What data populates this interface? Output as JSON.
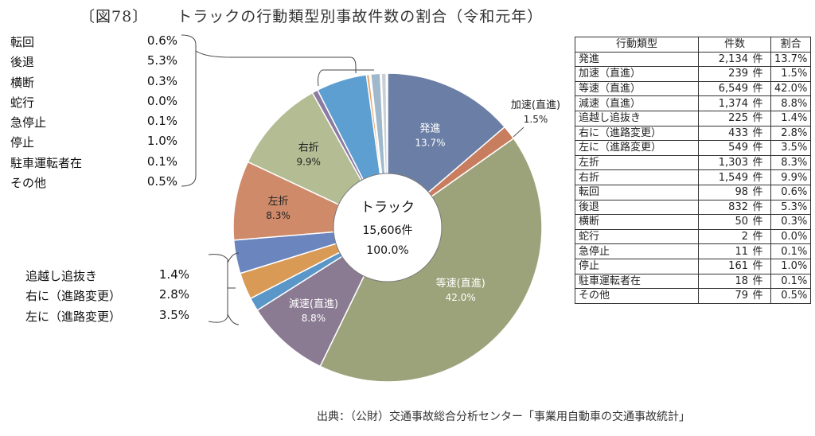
{
  "title": {
    "figure": "〔図78〕",
    "text": "トラックの行動類型別事故件数の割合（令和元年）"
  },
  "chart_data": {
    "type": "pie",
    "center": {
      "line1": "トラック",
      "line2": "15,606件",
      "line3": "100.0%"
    },
    "slices": [
      {
        "name": "発進",
        "percent": 13.7,
        "color": "#6b7fa6",
        "label_name": "発進",
        "label_pct": "13.7%"
      },
      {
        "name": "加速（直進）",
        "percent": 1.5,
        "color": "#c97d5f",
        "label_name": "加速(直進)",
        "label_pct": "1.5%"
      },
      {
        "name": "等速（直進）",
        "percent": 42.0,
        "color": "#9ca37a",
        "label_name": "等速(直進)",
        "label_pct": "42.0%"
      },
      {
        "name": "減速（直進）",
        "percent": 8.8,
        "color": "#8a7a92",
        "label_name": "減速(直進)",
        "label_pct": "8.8%"
      },
      {
        "name": "追越し追抜き",
        "percent": 1.4,
        "color": "#5b96c9",
        "label_name": "",
        "label_pct": ""
      },
      {
        "name": "右に（進路変更）",
        "percent": 2.8,
        "color": "#d99a55",
        "label_name": "",
        "label_pct": ""
      },
      {
        "name": "左に（進路変更）",
        "percent": 3.5,
        "color": "#6b85bf",
        "label_name": "",
        "label_pct": ""
      },
      {
        "name": "左折",
        "percent": 8.3,
        "color": "#cf8a6a",
        "label_name": "左折",
        "label_pct": "8.3%"
      },
      {
        "name": "右折",
        "percent": 9.9,
        "color": "#b3bc92",
        "label_name": "右折",
        "label_pct": "9.9%"
      },
      {
        "name": "転回",
        "percent": 0.6,
        "color": "#8c7aa3",
        "label_name": "",
        "label_pct": ""
      },
      {
        "name": "後退",
        "percent": 5.3,
        "color": "#5d9fd1",
        "label_name": "",
        "label_pct": ""
      },
      {
        "name": "横断",
        "percent": 0.3,
        "color": "#e8a36a",
        "label_name": "",
        "label_pct": ""
      },
      {
        "name": "蛇行",
        "percent": 0.0,
        "color": "#c0c0c0",
        "label_name": "",
        "label_pct": ""
      },
      {
        "name": "急停止",
        "percent": 0.1,
        "color": "#e0c070",
        "label_name": "",
        "label_pct": ""
      },
      {
        "name": "停止",
        "percent": 1.0,
        "color": "#9fb8cc",
        "label_name": "",
        "label_pct": ""
      },
      {
        "name": "駐車運転者在",
        "percent": 0.1,
        "color": "#b0b0b0",
        "label_name": "",
        "label_pct": ""
      },
      {
        "name": "その他",
        "percent": 0.5,
        "color": "#c8cfd6",
        "label_name": "",
        "label_pct": ""
      }
    ]
  },
  "left_top_list": [
    {
      "name": "転回",
      "pct": "0.6%"
    },
    {
      "name": "後退",
      "pct": "5.3%"
    },
    {
      "name": "横断",
      "pct": "0.3%"
    },
    {
      "name": "蛇行",
      "pct": "0.0%"
    },
    {
      "name": "急停止",
      "pct": "0.1%"
    },
    {
      "name": "停止",
      "pct": "1.0%"
    },
    {
      "name": "駐車運転者在",
      "pct": "0.1%"
    },
    {
      "name": "その他",
      "pct": "0.5%"
    }
  ],
  "left_bottom_list": [
    {
      "name": "追越し追抜き",
      "pct": "1.4%"
    },
    {
      "name": "右に（進路変更）",
      "pct": "2.8%"
    },
    {
      "name": "左に（進路変更）",
      "pct": "3.5%"
    }
  ],
  "table": {
    "headers": [
      "行動類型",
      "件数",
      "割合"
    ],
    "unit": "件",
    "rows": [
      {
        "type": "発進",
        "count": "2,134",
        "pct": "13.7%"
      },
      {
        "type": "加速（直進）",
        "count": "239",
        "pct": "1.5%"
      },
      {
        "type": "等速（直進）",
        "count": "6,549",
        "pct": "42.0%"
      },
      {
        "type": "減速（直進）",
        "count": "1,374",
        "pct": "8.8%"
      },
      {
        "type": "追越し追抜き",
        "count": "225",
        "pct": "1.4%"
      },
      {
        "type": "右に（進路変更）",
        "count": "433",
        "pct": "2.8%"
      },
      {
        "type": "左に（進路変更）",
        "count": "549",
        "pct": "3.5%"
      },
      {
        "type": "左折",
        "count": "1,303",
        "pct": "8.3%"
      },
      {
        "type": "右折",
        "count": "1,549",
        "pct": "9.9%"
      },
      {
        "type": "転回",
        "count": "98",
        "pct": "0.6%"
      },
      {
        "type": "後退",
        "count": "832",
        "pct": "5.3%"
      },
      {
        "type": "横断",
        "count": "50",
        "pct": "0.3%"
      },
      {
        "type": "蛇行",
        "count": "2",
        "pct": "0.0%"
      },
      {
        "type": "急停止",
        "count": "11",
        "pct": "0.1%"
      },
      {
        "type": "停止",
        "count": "161",
        "pct": "1.0%"
      },
      {
        "type": "駐車運転者在",
        "count": "18",
        "pct": "0.1%"
      },
      {
        "type": "その他",
        "count": "79",
        "pct": "0.5%"
      }
    ]
  },
  "source": "出典：（公財）交通事故総合分析センター「事業用自動車の交通事故統計」"
}
